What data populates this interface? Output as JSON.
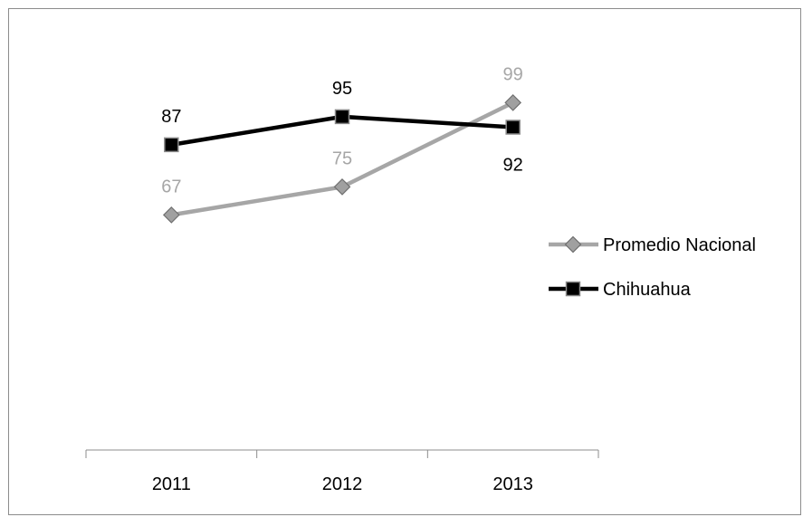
{
  "chart_data": {
    "type": "line",
    "categories": [
      "2011",
      "2012",
      "2013"
    ],
    "series": [
      {
        "name": "Promedio Nacional",
        "values": [
          67,
          75,
          99
        ],
        "color": "#a6a6a6",
        "marker_fill": "#a0a0a0",
        "marker": "diamond"
      },
      {
        "name": "Chihuahua",
        "values": [
          87,
          95,
          92
        ],
        "color": "#000000",
        "marker_fill": "#000000",
        "marker": "square"
      }
    ],
    "ylim": [
      0,
      120
    ],
    "grid": false,
    "legend": "right",
    "data_labels": true
  }
}
